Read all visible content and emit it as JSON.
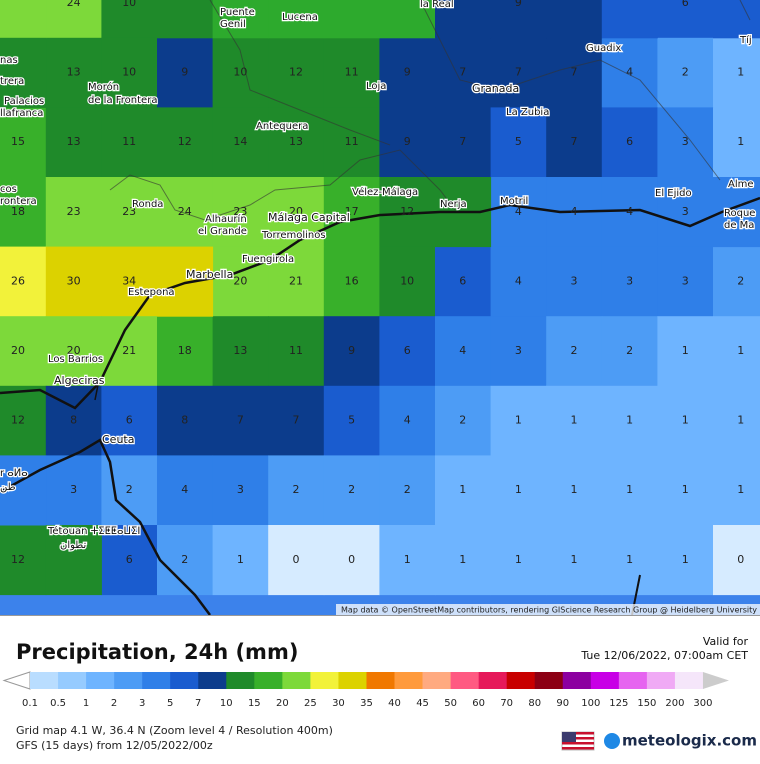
{
  "map": {
    "grid_values": [
      [
        null,
        24,
        10,
        null,
        null,
        null,
        null,
        null,
        null,
        9,
        null,
        null,
        6,
        null
      ],
      [
        null,
        13,
        10,
        9,
        10,
        12,
        11,
        9,
        7,
        7,
        7,
        4,
        2,
        1
      ],
      [
        15,
        13,
        11,
        12,
        14,
        13,
        11,
        9,
        7,
        5,
        7,
        6,
        3,
        1
      ],
      [
        18,
        23,
        23,
        24,
        23,
        20,
        17,
        12,
        null,
        4,
        4,
        4,
        3,
        null
      ],
      [
        26,
        30,
        34,
        null,
        20,
        21,
        16,
        10,
        6,
        4,
        3,
        3,
        3,
        2
      ],
      [
        20,
        20,
        21,
        18,
        13,
        11,
        9,
        6,
        4,
        3,
        2,
        2,
        1,
        1
      ],
      [
        12,
        8,
        6,
        8,
        7,
        7,
        5,
        4,
        2,
        1,
        1,
        1,
        1,
        1
      ],
      [
        null,
        3,
        2,
        4,
        3,
        2,
        2,
        2,
        1,
        1,
        1,
        1,
        1,
        1
      ],
      [
        12,
        null,
        6,
        2,
        1,
        0,
        0,
        1,
        1,
        1,
        1,
        1,
        1,
        0
      ]
    ],
    "places": [
      "Puente",
      "Genil",
      "Lucena",
      "la Real",
      "Guadix",
      "Tíj",
      "nas",
      "trera",
      "Morón",
      "de la Frontera",
      "Palacios",
      "llafranca",
      "Loja",
      "Granada",
      "La Zubia",
      "Antequera",
      "cos",
      "rontera",
      "Ronda",
      "Vélez-Málaga",
      "Nerja",
      "Motril",
      "El Ejido",
      "Alme",
      "Roque",
      "de Ma",
      "Alhaurín",
      "el Grande",
      "Málaga Capital",
      "Torremolinos",
      "Fuengirola",
      "Marbella",
      "Estepona",
      "Los Barrios",
      "Algeciras",
      "Ceuta",
      "Tétouan ⵜⵉⵟⵟⴰⵡⵉⵏ",
      "تطوان",
      "r ⴰⵍⴰ",
      "طن"
    ],
    "attribution": "Map data © OpenStreetMap contributors, rendering GIScience Research Group @ Heidelberg University"
  },
  "legend": {
    "title": "Precipitation, 24h (mm)",
    "valid_label": "Valid for",
    "valid_time": "Tue 12/06/2022, 07:00am CET",
    "scale": [
      {
        "value": 0.1,
        "color": "#b9ddff"
      },
      {
        "value": 0.5,
        "color": "#96cbff"
      },
      {
        "value": 1,
        "color": "#6eb4ff"
      },
      {
        "value": 2,
        "color": "#4d9cf5"
      },
      {
        "value": 3,
        "color": "#2f7fe8"
      },
      {
        "value": 5,
        "color": "#1a5ccf"
      },
      {
        "value": 7,
        "color": "#0c3c8c"
      },
      {
        "value": 10,
        "color": "#1f8a2a"
      },
      {
        "value": 15,
        "color": "#38b02a"
      },
      {
        "value": 20,
        "color": "#7dd93a"
      },
      {
        "value": 25,
        "color": "#f2f23a"
      },
      {
        "value": 30,
        "color": "#dcd200"
      },
      {
        "value": 35,
        "color": "#f07800"
      },
      {
        "value": 40,
        "color": "#ff9a3c"
      },
      {
        "value": 45,
        "color": "#ffaa80"
      },
      {
        "value": 50,
        "color": "#ff5a82"
      },
      {
        "value": 60,
        "color": "#e6195a"
      },
      {
        "value": 70,
        "color": "#c80000"
      },
      {
        "value": 80,
        "color": "#8c0014"
      },
      {
        "value": 90,
        "color": "#8c00a0"
      },
      {
        "value": 100,
        "color": "#c800e6"
      },
      {
        "value": 125,
        "color": "#e664f0"
      },
      {
        "value": 150,
        "color": "#f0aaf5"
      },
      {
        "value": 200,
        "color": "#f5e6fa"
      },
      {
        "value": 300,
        "color": "#cccccc"
      }
    ]
  },
  "footer": {
    "grid_info": "Grid map 4.1 W, 36.4 N (Zoom level 4 / Resolution 400m)",
    "model_info": "GFS (15 days) from 12/05/2022/00z",
    "brand": "meteologix.com"
  }
}
